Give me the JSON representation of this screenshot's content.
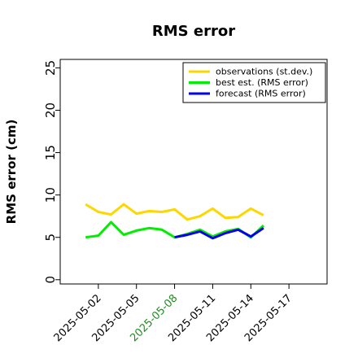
{
  "chart_data": {
    "type": "line",
    "title": "RMS error",
    "ylabel": "RMS error (cm)",
    "xlabel": "",
    "x_axis_type": "date",
    "xlim": [
      "2025-04-29",
      "2025-05-20"
    ],
    "ylim": [
      -0.5,
      26
    ],
    "yticks": [
      0,
      5,
      10,
      15,
      20,
      25
    ],
    "xticks": [
      "2025-05-02",
      "2025-05-05",
      "2025-05-08",
      "2025-05-11",
      "2025-05-14",
      "2025-05-17"
    ],
    "highlighted_xtick": "2025-05-08",
    "highlight_color": "#228B22",
    "grid": false,
    "legend_position": "top-right",
    "series": [
      {
        "name": "observations (st.dev.)",
        "color": "#FFD700",
        "x": [
          "2025-05-01",
          "2025-05-02",
          "2025-05-03",
          "2025-05-04",
          "2025-05-05",
          "2025-05-06",
          "2025-05-07",
          "2025-05-08",
          "2025-05-09",
          "2025-05-10",
          "2025-05-11",
          "2025-05-12",
          "2025-05-13",
          "2025-05-14",
          "2025-05-15"
        ],
        "values": [
          8.9,
          8.0,
          7.7,
          8.9,
          7.8,
          8.1,
          8.0,
          8.3,
          7.1,
          7.5,
          8.4,
          7.3,
          7.4,
          8.4,
          7.6
        ]
      },
      {
        "name": "best est. (RMS error)",
        "color": "#00EE00",
        "x": [
          "2025-05-01",
          "2025-05-02",
          "2025-05-03",
          "2025-05-04",
          "2025-05-05",
          "2025-05-06",
          "2025-05-07",
          "2025-05-08",
          "2025-05-09",
          "2025-05-10",
          "2025-05-11",
          "2025-05-12",
          "2025-05-13",
          "2025-05-14",
          "2025-05-15"
        ],
        "values": [
          5.0,
          5.2,
          6.8,
          5.3,
          5.8,
          6.1,
          5.9,
          5.0,
          5.4,
          5.9,
          5.1,
          5.7,
          6.0,
          5.0,
          6.4
        ]
      },
      {
        "name": "forecast (RMS error)",
        "color": "#0000EE",
        "x": [
          "2025-05-08",
          "2025-05-09",
          "2025-05-10",
          "2025-05-11",
          "2025-05-12",
          "2025-05-13",
          "2025-05-14",
          "2025-05-15"
        ],
        "values": [
          5.0,
          5.3,
          5.7,
          4.9,
          5.5,
          5.9,
          5.1,
          6.1
        ]
      }
    ]
  }
}
